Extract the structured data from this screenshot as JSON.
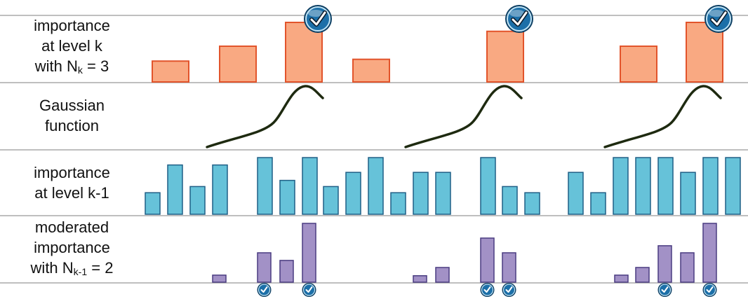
{
  "labels": {
    "row1": {
      "line1": "importance",
      "line2": "at level k",
      "line3_prefix": "with N",
      "line3_sub": "k",
      "line3_suffix": " = 3"
    },
    "row2": {
      "line1": "Gaussian",
      "line2": "function"
    },
    "row3": {
      "line1": "importance",
      "line2": "at level k-1"
    },
    "row4": {
      "line1": "moderated",
      "line2": "importance",
      "line3_prefix": "with N",
      "line3_sub": "k-1",
      "line3_suffix": " = 2"
    }
  },
  "colors": {
    "orange_fill": "#f9a982",
    "orange_stroke": "#e2542b",
    "blue_fill": "#66c2d9",
    "blue_stroke": "#1f5f86",
    "purple_fill": "#a291c6",
    "purple_stroke": "#4a3c80",
    "gauss_stroke": "#1e2a10",
    "rule": "#aaaaaa",
    "check_fill": "#1c6fa8"
  },
  "chart_data": [
    {
      "type": "bar",
      "name": "importance-level-k",
      "values": [
        0.35,
        0.6,
        1.0,
        0.38,
        0.85,
        0.6,
        1.0
      ],
      "selected": [
        2,
        4,
        6
      ]
    },
    {
      "type": "line",
      "name": "gaussian-function",
      "curves": 3
    },
    {
      "type": "bar",
      "name": "importance-level-k-1",
      "values": [
        0.35,
        0.8,
        0.45,
        0.8,
        0.92,
        0.55,
        0.92,
        0.45,
        0.68,
        0.92,
        0.35,
        0.68,
        0.68,
        0.92,
        0.45,
        0.35,
        0.68,
        0.35,
        0.92,
        0.92,
        0.92,
        0.68,
        0.92,
        0.92
      ]
    },
    {
      "type": "bar",
      "name": "moderated-importance",
      "values": [
        0,
        0,
        0,
        0.12,
        0.5,
        0.37,
        1.0,
        0,
        0,
        0.11,
        0.25,
        0.75,
        0.5,
        0,
        0,
        0.12,
        0.25,
        0.62,
        0.5,
        1.0
      ],
      "selected": [
        4,
        6,
        11,
        12,
        17,
        19
      ]
    }
  ]
}
